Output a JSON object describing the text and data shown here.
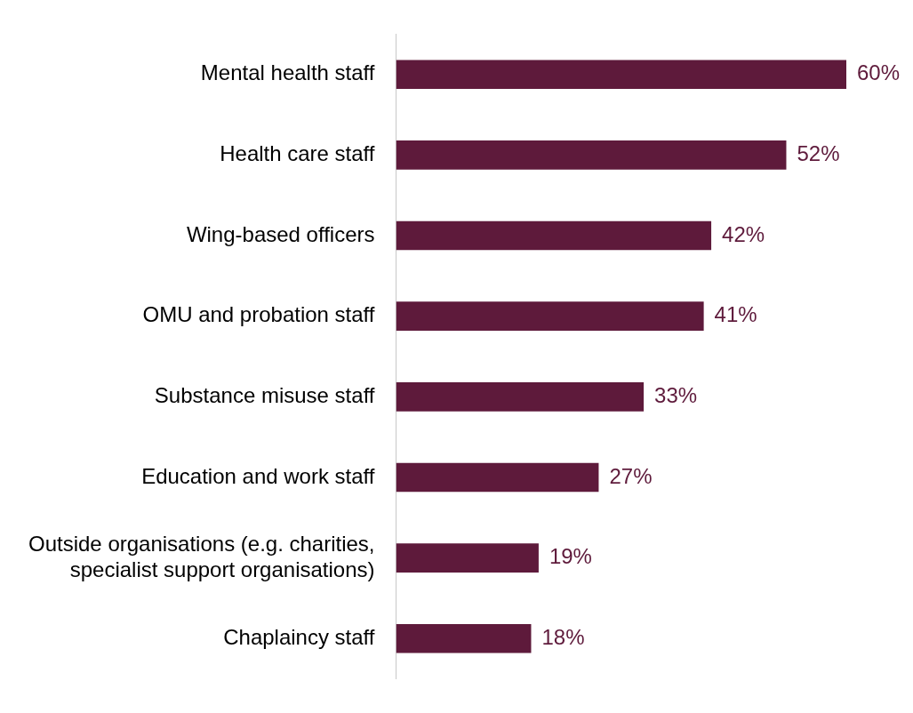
{
  "chart_data": {
    "type": "bar",
    "orientation": "horizontal",
    "categories": [
      "Mental health staff",
      "Health care staff",
      "Wing-based officers",
      "OMU and probation staff",
      "Substance misuse staff",
      "Education and work staff",
      "Outside organisations (e.g. charities, specialist support organisations)",
      "Chaplaincy staff"
    ],
    "values": [
      60,
      52,
      42,
      41,
      33,
      27,
      19,
      18
    ],
    "value_labels": [
      "60%",
      "52%",
      "42%",
      "41%",
      "33%",
      "27%",
      "19%",
      "18%"
    ],
    "color": "#5e1a3b",
    "grid": false,
    "legend": false
  }
}
